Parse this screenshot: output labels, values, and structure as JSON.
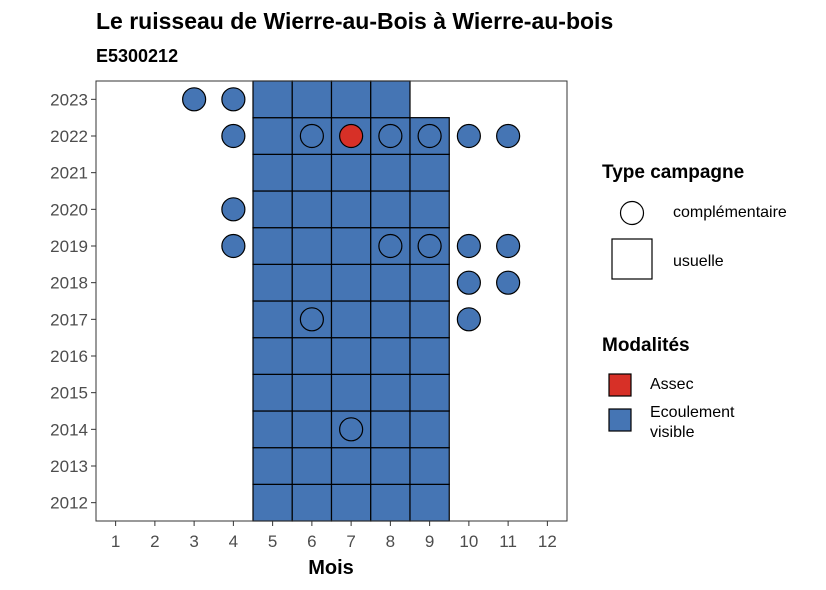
{
  "title": "Le ruisseau de Wierre-au-Bois à Wierre-au-bois",
  "subtitle": "E5300212",
  "chart_data": {
    "type": "heatmap",
    "xlabel": "Mois",
    "ylabel": "",
    "x_ticks": [
      1,
      2,
      3,
      4,
      5,
      6,
      7,
      8,
      9,
      10,
      11,
      12
    ],
    "y_ticks": [
      2012,
      2013,
      2014,
      2015,
      2016,
      2017,
      2018,
      2019,
      2020,
      2021,
      2022,
      2023
    ],
    "xlim": [
      0.5,
      12.5
    ],
    "ylim": [
      2011.5,
      2023.5
    ],
    "colors": {
      "Assec": "#d73027",
      "Ecoulement visible": "#4575b4"
    },
    "usuelle": [
      {
        "year": 2012,
        "months": [
          5,
          6,
          7,
          8,
          9
        ],
        "modalite": "Ecoulement visible"
      },
      {
        "year": 2013,
        "months": [
          5,
          6,
          7,
          8,
          9
        ],
        "modalite": "Ecoulement visible"
      },
      {
        "year": 2014,
        "months": [
          5,
          6,
          7,
          8,
          9
        ],
        "modalite": "Ecoulement visible"
      },
      {
        "year": 2015,
        "months": [
          5,
          6,
          7,
          8,
          9
        ],
        "modalite": "Ecoulement visible"
      },
      {
        "year": 2016,
        "months": [
          5,
          6,
          7,
          8,
          9
        ],
        "modalite": "Ecoulement visible"
      },
      {
        "year": 2017,
        "months": [
          5,
          6,
          7,
          8,
          9
        ],
        "modalite": "Ecoulement visible"
      },
      {
        "year": 2018,
        "months": [
          5,
          6,
          7,
          8,
          9
        ],
        "modalite": "Ecoulement visible"
      },
      {
        "year": 2019,
        "months": [
          5,
          6,
          7,
          8,
          9
        ],
        "modalite": "Ecoulement visible"
      },
      {
        "year": 2020,
        "months": [
          5,
          6,
          7,
          8,
          9
        ],
        "modalite": "Ecoulement visible"
      },
      {
        "year": 2021,
        "months": [
          5,
          6,
          7,
          8,
          9
        ],
        "modalite": "Ecoulement visible"
      },
      {
        "year": 2022,
        "months": [
          5,
          6,
          7,
          8,
          9
        ],
        "modalite": "Ecoulement visible"
      },
      {
        "year": 2023,
        "months": [
          5,
          6,
          7,
          8
        ],
        "modalite": "Ecoulement visible"
      }
    ],
    "complementaire": [
      {
        "year": 2023,
        "month": 3,
        "modalite": "Ecoulement visible"
      },
      {
        "year": 2023,
        "month": 4,
        "modalite": "Ecoulement visible"
      },
      {
        "year": 2022,
        "month": 4,
        "modalite": "Ecoulement visible"
      },
      {
        "year": 2022,
        "month": 6,
        "modalite": "Ecoulement visible"
      },
      {
        "year": 2022,
        "month": 7,
        "modalite": "Assec"
      },
      {
        "year": 2022,
        "month": 8,
        "modalite": "Ecoulement visible"
      },
      {
        "year": 2022,
        "month": 9,
        "modalite": "Ecoulement visible"
      },
      {
        "year": 2022,
        "month": 10,
        "modalite": "Ecoulement visible"
      },
      {
        "year": 2022,
        "month": 11,
        "modalite": "Ecoulement visible"
      },
      {
        "year": 2020,
        "month": 4,
        "modalite": "Ecoulement visible"
      },
      {
        "year": 2019,
        "month": 4,
        "modalite": "Ecoulement visible"
      },
      {
        "year": 2019,
        "month": 8,
        "modalite": "Ecoulement visible"
      },
      {
        "year": 2019,
        "month": 9,
        "modalite": "Ecoulement visible"
      },
      {
        "year": 2019,
        "month": 10,
        "modalite": "Ecoulement visible"
      },
      {
        "year": 2019,
        "month": 11,
        "modalite": "Ecoulement visible"
      },
      {
        "year": 2018,
        "month": 10,
        "modalite": "Ecoulement visible"
      },
      {
        "year": 2018,
        "month": 11,
        "modalite": "Ecoulement visible"
      },
      {
        "year": 2017,
        "month": 6,
        "modalite": "Ecoulement visible"
      },
      {
        "year": 2017,
        "month": 10,
        "modalite": "Ecoulement visible"
      },
      {
        "year": 2014,
        "month": 7,
        "modalite": "Ecoulement visible"
      }
    ]
  },
  "legend": {
    "type_title": "Type campagne",
    "type_items": [
      "complémentaire",
      "usuelle"
    ],
    "mod_title": "Modalités",
    "mod_items": [
      "Assec",
      "Ecoulement visible"
    ]
  }
}
